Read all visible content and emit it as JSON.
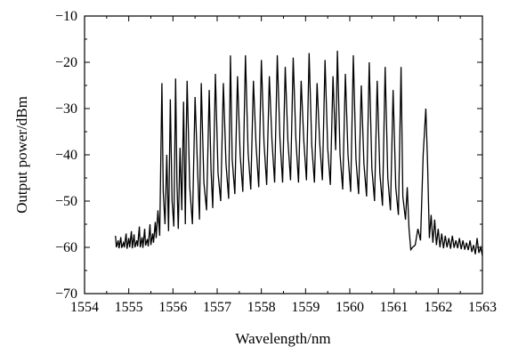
{
  "chart_data": {
    "type": "line",
    "title": "",
    "xlabel": "Wavelength/nm",
    "ylabel": "Output power/dBm",
    "xlim": [
      1554,
      1563
    ],
    "ylim": [
      -70,
      -10
    ],
    "xticks": [
      1554,
      1555,
      1556,
      1557,
      1558,
      1559,
      1560,
      1561,
      1562,
      1563
    ],
    "yticks": [
      -70,
      -60,
      -50,
      -40,
      -30,
      -20,
      -10
    ],
    "grid": false,
    "legend": "none",
    "series": [
      {
        "color": "#000000",
        "x": [
          1554.7,
          1554.72,
          1554.76,
          1554.78,
          1554.82,
          1554.84,
          1554.88,
          1554.9,
          1554.94,
          1554.96,
          1555.0,
          1555.02,
          1555.06,
          1555.08,
          1555.12,
          1555.14,
          1555.18,
          1555.2,
          1555.24,
          1555.26,
          1555.3,
          1555.32,
          1555.36,
          1555.38,
          1555.42,
          1555.44,
          1555.48,
          1555.5,
          1555.54,
          1555.56,
          1555.6,
          1555.62,
          1555.66,
          1555.7,
          1555.75,
          1555.78,
          1555.82,
          1555.86,
          1555.9,
          1555.94,
          1555.98,
          1556.02,
          1556.06,
          1556.09,
          1556.12,
          1556.16,
          1556.2,
          1556.24,
          1556.28,
          1556.3,
          1556.32,
          1556.38,
          1556.44,
          1556.5,
          1556.56,
          1556.6,
          1556.64,
          1556.7,
          1556.76,
          1556.82,
          1556.86,
          1556.9,
          1556.96,
          1557.02,
          1557.08,
          1557.14,
          1557.2,
          1557.26,
          1557.3,
          1557.34,
          1557.4,
          1557.46,
          1557.52,
          1557.58,
          1557.64,
          1557.7,
          1557.76,
          1557.82,
          1557.88,
          1557.94,
          1558.0,
          1558.06,
          1558.12,
          1558.18,
          1558.24,
          1558.3,
          1558.36,
          1558.42,
          1558.48,
          1558.54,
          1558.6,
          1558.66,
          1558.72,
          1558.78,
          1558.84,
          1558.9,
          1558.96,
          1559.02,
          1559.08,
          1559.14,
          1559.2,
          1559.26,
          1559.32,
          1559.38,
          1559.44,
          1559.5,
          1559.56,
          1559.62,
          1559.68,
          1559.72,
          1559.78,
          1559.84,
          1559.9,
          1559.96,
          1560.02,
          1560.08,
          1560.14,
          1560.2,
          1560.26,
          1560.32,
          1560.38,
          1560.44,
          1560.5,
          1560.56,
          1560.62,
          1560.68,
          1560.74,
          1560.8,
          1560.86,
          1560.92,
          1560.98,
          1561.04,
          1561.1,
          1561.16,
          1561.2,
          1561.26,
          1561.3,
          1561.34,
          1561.38,
          1561.42,
          1561.48,
          1561.54,
          1561.6,
          1561.66,
          1561.72,
          1561.76,
          1561.8,
          1561.84,
          1561.88,
          1561.92,
          1561.96,
          1562.0,
          1562.04,
          1562.08,
          1562.12,
          1562.16,
          1562.2,
          1562.24,
          1562.28,
          1562.32,
          1562.36,
          1562.4,
          1562.44,
          1562.48,
          1562.52,
          1562.56,
          1562.6,
          1562.64,
          1562.68,
          1562.72,
          1562.76,
          1562.8,
          1562.84,
          1562.88,
          1562.92,
          1562.96,
          1563.0
        ],
        "y": [
          -57.5,
          -60.0,
          -58.5,
          -60.2,
          -57.8,
          -60.1,
          -59.0,
          -60.0,
          -57.0,
          -60.3,
          -58.0,
          -60.0,
          -56.5,
          -60.2,
          -57.2,
          -60.0,
          -58.5,
          -59.8,
          -55.5,
          -60.0,
          -57.8,
          -60.1,
          -56.0,
          -59.6,
          -58.2,
          -59.8,
          -55.0,
          -59.5,
          -57.0,
          -59.0,
          -54.5,
          -58.0,
          -52.0,
          -57.5,
          -24.5,
          -48.0,
          -55.0,
          -40.0,
          -56.5,
          -28.0,
          -50.0,
          -55.5,
          -23.5,
          -46.0,
          -56.0,
          -38.5,
          -52.0,
          -28.5,
          -55.0,
          -36.0,
          -24.0,
          -47.0,
          -55.0,
          -27.5,
          -44.0,
          -54.0,
          -24.5,
          -46.0,
          -52.0,
          -26.0,
          -43.0,
          -51.5,
          -22.5,
          -44.0,
          -50.0,
          -24.5,
          -42.0,
          -49.5,
          -18.5,
          -41.0,
          -48.5,
          -23.0,
          -40.0,
          -48.0,
          -18.5,
          -39.5,
          -47.5,
          -24.0,
          -38.0,
          -47.0,
          -19.5,
          -37.5,
          -46.5,
          -23.0,
          -37.0,
          -46.0,
          -18.5,
          -36.5,
          -46.0,
          -21.0,
          -37.0,
          -45.5,
          -19.0,
          -36.5,
          -46.0,
          -24.0,
          -37.0,
          -45.5,
          -18.0,
          -38.0,
          -46.0,
          -24.5,
          -37.5,
          -45.5,
          -19.5,
          -38.5,
          -46.5,
          -23.0,
          -39.0,
          -17.5,
          -40.0,
          -47.5,
          -22.5,
          -40.0,
          -48.0,
          -18.5,
          -41.0,
          -48.5,
          -25.0,
          -42.0,
          -49.0,
          -20.0,
          -43.0,
          -50.0,
          -24.0,
          -44.0,
          -51.0,
          -21.0,
          -45.0,
          -52.0,
          -26.0,
          -47.0,
          -53.0,
          -21.0,
          -49.0,
          -54.0,
          -47.0,
          -56.0,
          -60.5,
          -60.0,
          -59.5,
          -56.0,
          -58.5,
          -40.0,
          -30.0,
          -42.0,
          -58.0,
          -53.0,
          -59.0,
          -54.0,
          -59.5,
          -56.0,
          -60.0,
          -57.0,
          -60.2,
          -57.5,
          -60.0,
          -58.0,
          -60.3,
          -57.5,
          -60.1,
          -58.5,
          -60.2,
          -58.0,
          -60.4,
          -58.5,
          -60.5,
          -59.0,
          -60.6,
          -58.5,
          -61.0,
          -59.5,
          -61.5,
          -58.0,
          -61.2,
          -60.0,
          -61.8
        ]
      }
    ]
  }
}
